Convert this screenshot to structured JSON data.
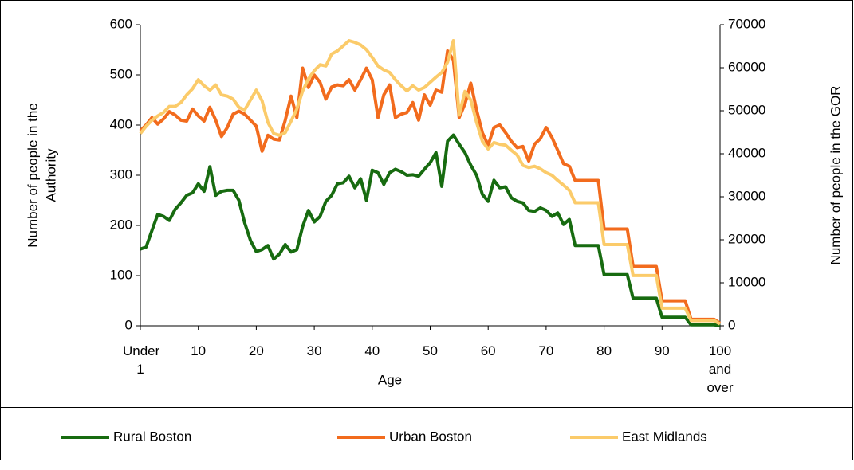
{
  "chart_data": {
    "type": "line",
    "xlabel": "Age",
    "ylabel": [
      "Number of people in the",
      "Authority"
    ],
    "y2label": "Number of people in the GOR",
    "categories": [
      "Under 1",
      null,
      null,
      null,
      null,
      null,
      null,
      null,
      null,
      null,
      "10",
      null,
      null,
      null,
      null,
      null,
      null,
      null,
      null,
      null,
      "20",
      null,
      null,
      null,
      null,
      null,
      null,
      null,
      null,
      null,
      "30",
      null,
      null,
      null,
      null,
      null,
      null,
      null,
      null,
      null,
      "40",
      null,
      null,
      null,
      null,
      null,
      null,
      null,
      null,
      null,
      "50",
      null,
      null,
      null,
      null,
      null,
      null,
      null,
      null,
      null,
      "60",
      null,
      null,
      null,
      null,
      null,
      null,
      null,
      null,
      null,
      "70",
      null,
      null,
      null,
      null,
      null,
      null,
      null,
      null,
      null,
      "80",
      null,
      null,
      null,
      null,
      null,
      null,
      null,
      null,
      null,
      "90",
      null,
      null,
      null,
      null,
      null,
      null,
      null,
      null,
      null,
      "100 and over"
    ],
    "ylim": [
      0,
      600
    ],
    "yticks": [
      0,
      100,
      200,
      300,
      400,
      500,
      600
    ],
    "y2lim": [
      0,
      70000
    ],
    "y2ticks": [
      0,
      10000,
      20000,
      30000,
      40000,
      50000,
      60000,
      70000
    ],
    "legend": "bottom",
    "series": [
      {
        "name": "Rural Boston",
        "color": "#176b10",
        "values": [
          153,
          157,
          190,
          222,
          218,
          210,
          232,
          245,
          260,
          265,
          283,
          268,
          317,
          260,
          268,
          270,
          270,
          250,
          205,
          170,
          148,
          152,
          160,
          133,
          143,
          162,
          147,
          152,
          198,
          230,
          207,
          218,
          248,
          260,
          283,
          285,
          298,
          275,
          293,
          250,
          310,
          305,
          282,
          305,
          312,
          307,
          300,
          301,
          298,
          312,
          325,
          345,
          278,
          368,
          380,
          362,
          345,
          320,
          300,
          262,
          248,
          290,
          275,
          277,
          255,
          248,
          245,
          230,
          228,
          235,
          230,
          218,
          225,
          202,
          212,
          160,
          160,
          160,
          160,
          160,
          102,
          102,
          102,
          102,
          102,
          55,
          55,
          55,
          55,
          55,
          17,
          17,
          17,
          17,
          17,
          2,
          2,
          2,
          2,
          2,
          0
        ]
      },
      {
        "name": "Urban Boston",
        "color": "#f26b1d",
        "axis": "y2",
        "values": [
          45300,
          46700,
          48400,
          46900,
          48100,
          49800,
          49000,
          47800,
          47600,
          50400,
          48800,
          47600,
          50800,
          47800,
          44000,
          46100,
          49200,
          49900,
          49200,
          47800,
          46400,
          40600,
          44300,
          43400,
          43200,
          47800,
          53400,
          48400,
          59900,
          55400,
          58300,
          56600,
          52700,
          55500,
          56000,
          55800,
          57200,
          54800,
          57200,
          59900,
          57200,
          48400,
          53700,
          56000,
          48400,
          49200,
          49600,
          51900,
          47800,
          53700,
          51300,
          54800,
          54300,
          63900,
          61800,
          48400,
          51600,
          56400,
          50200,
          44900,
          42000,
          46100,
          46700,
          44900,
          42900,
          41400,
          41700,
          38300,
          42200,
          43500,
          46100,
          43800,
          40800,
          37700,
          37100,
          33800,
          33800,
          33800,
          33800,
          33800,
          22500,
          22500,
          22500,
          22500,
          22500,
          13800,
          13800,
          13800,
          13800,
          13800,
          5800,
          5800,
          5800,
          5800,
          5800,
          1500,
          1500,
          1500,
          1500,
          1500,
          600
        ]
      },
      {
        "name": "East Midlands",
        "color": "#fbcb6a",
        "axis": "y2",
        "values": [
          44700,
          46400,
          47800,
          48800,
          49600,
          51000,
          51000,
          51900,
          53700,
          55100,
          57200,
          55800,
          54800,
          56000,
          53700,
          53400,
          52700,
          50800,
          50200,
          52500,
          54800,
          52300,
          47300,
          44700,
          44300,
          44900,
          47600,
          50400,
          54600,
          57400,
          59300,
          60700,
          60400,
          63200,
          63900,
          65100,
          66300,
          65900,
          65300,
          64200,
          62400,
          60400,
          59500,
          58900,
          57200,
          55800,
          54600,
          55800,
          54800,
          55400,
          56600,
          57800,
          58900,
          61300,
          66300,
          49000,
          54500,
          52500,
          47300,
          42900,
          41100,
          42600,
          42200,
          42000,
          40800,
          39700,
          37300,
          36800,
          37100,
          36500,
          35600,
          35000,
          33800,
          32700,
          31500,
          28600,
          28600,
          28600,
          28600,
          28600,
          18900,
          18900,
          18900,
          18900,
          18900,
          11700,
          11700,
          11700,
          11700,
          11700,
          4100,
          4100,
          4100,
          4100,
          4100,
          1200,
          1200,
          1200,
          1200,
          1200,
          400
        ]
      }
    ]
  }
}
